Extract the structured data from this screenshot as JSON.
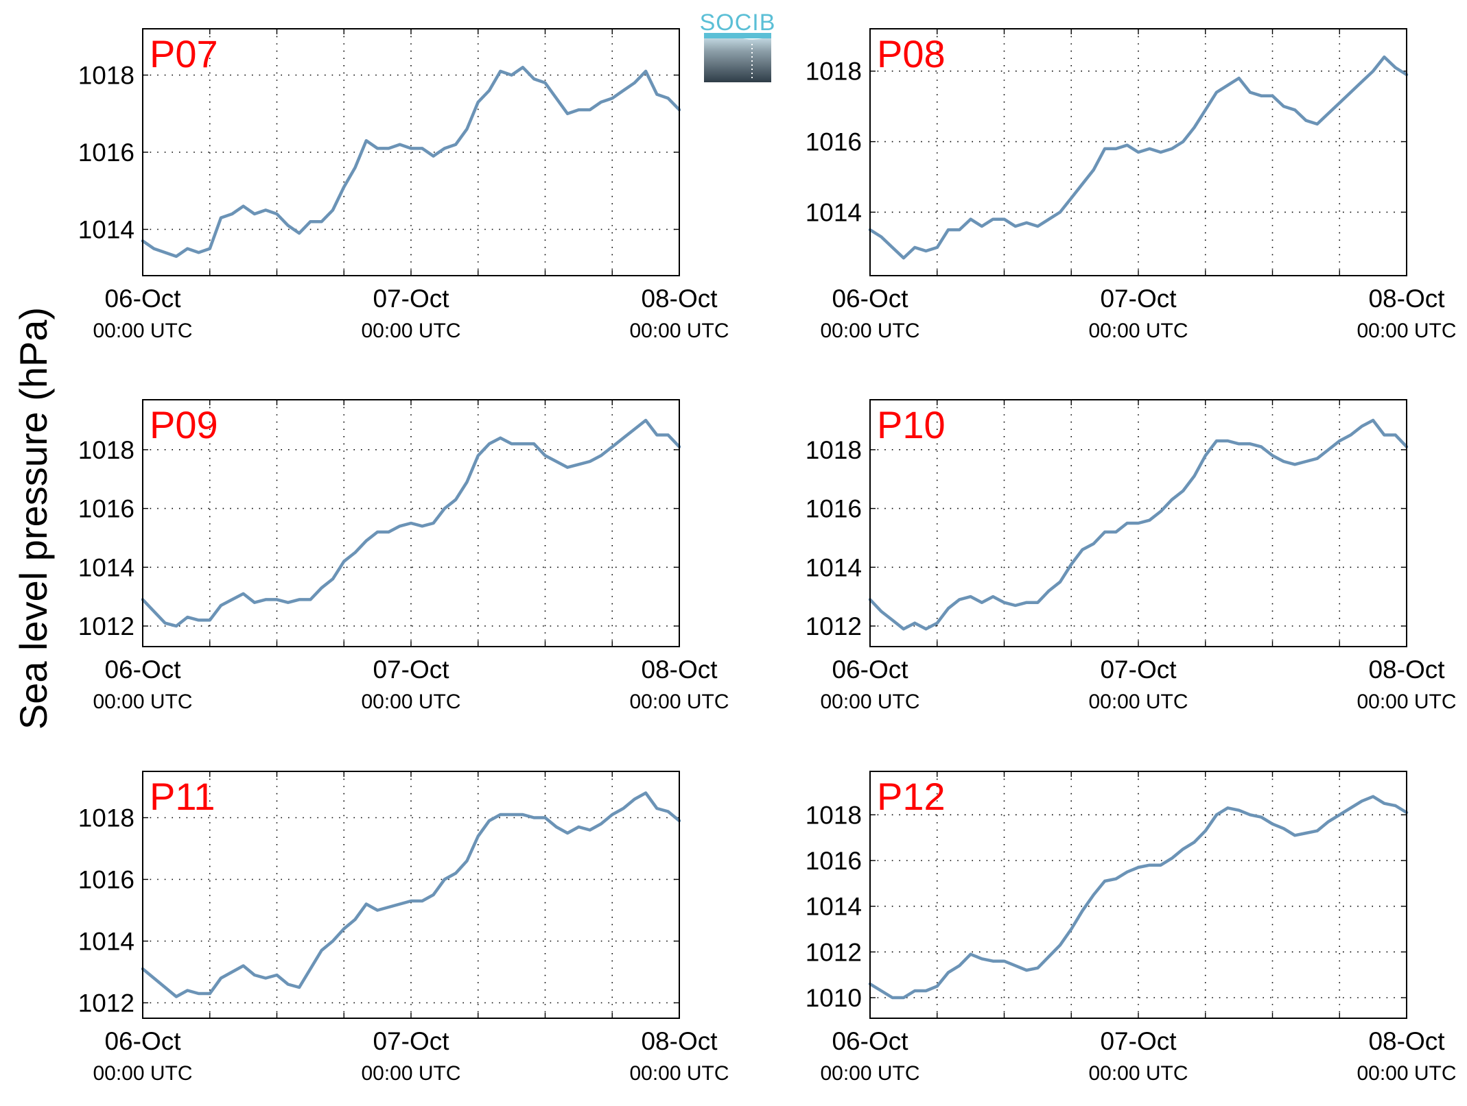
{
  "figure": {
    "ylabel": "Sea level pressure (hPa)",
    "logo_text": "SOCIB",
    "line_color": "#6b93b6",
    "label_color": "#ff0000"
  },
  "chart_data": [
    {
      "type": "line",
      "title": "P07",
      "x_ticks": [
        "06-Oct",
        "07-Oct",
        "08-Oct"
      ],
      "x_tick_sublabels": [
        "00:00 UTC",
        "00:00 UTC",
        "00:00 UTC"
      ],
      "xlim_hours": [
        0,
        48
      ],
      "x_grid_every_hours": 6,
      "ylim": [
        1012.8,
        1019.2
      ],
      "yticks": [
        1014,
        1016,
        1018
      ],
      "grid": true,
      "series": [
        {
          "x_hours": [
            0,
            1,
            2,
            3,
            4,
            5,
            6,
            7,
            8,
            9,
            10,
            11,
            12,
            13,
            14,
            15,
            16,
            17,
            18,
            19,
            20,
            21,
            22,
            23,
            24,
            25,
            26,
            27,
            28,
            29,
            30,
            31,
            32,
            33,
            34,
            35,
            36,
            37,
            38,
            39,
            40,
            41,
            42,
            43,
            44,
            45,
            46,
            47,
            48
          ],
          "values": [
            1013.7,
            1013.5,
            1013.4,
            1013.3,
            1013.5,
            1013.4,
            1013.5,
            1014.3,
            1014.4,
            1014.6,
            1014.4,
            1014.5,
            1014.4,
            1014.1,
            1013.9,
            1014.2,
            1014.2,
            1014.5,
            1015.1,
            1015.6,
            1016.3,
            1016.1,
            1016.1,
            1016.2,
            1016.1,
            1016.1,
            1015.9,
            1016.1,
            1016.2,
            1016.6,
            1017.3,
            1017.6,
            1018.1,
            1018.0,
            1018.2,
            1017.9,
            1017.8,
            1017.4,
            1017.0,
            1017.1,
            1017.1,
            1017.3,
            1017.4,
            1017.6,
            1017.8,
            1018.1,
            1017.5,
            1017.4,
            1017.1
          ]
        }
      ]
    },
    {
      "type": "line",
      "title": "P08",
      "x_ticks": [
        "06-Oct",
        "07-Oct",
        "08-Oct"
      ],
      "x_tick_sublabels": [
        "00:00 UTC",
        "00:00 UTC",
        "00:00 UTC"
      ],
      "xlim_hours": [
        0,
        48
      ],
      "x_grid_every_hours": 6,
      "ylim": [
        1012.2,
        1019.2
      ],
      "yticks": [
        1014,
        1016,
        1018
      ],
      "grid": true,
      "series": [
        {
          "x_hours": [
            0,
            1,
            2,
            3,
            4,
            5,
            6,
            7,
            8,
            9,
            10,
            11,
            12,
            13,
            14,
            15,
            16,
            17,
            18,
            19,
            20,
            21,
            22,
            23,
            24,
            25,
            26,
            27,
            28,
            29,
            30,
            31,
            32,
            33,
            34,
            35,
            36,
            37,
            38,
            39,
            40,
            41,
            42,
            43,
            44,
            45,
            46,
            47,
            48
          ],
          "values": [
            1013.5,
            1013.3,
            1013.0,
            1012.7,
            1013.0,
            1012.9,
            1013.0,
            1013.5,
            1013.5,
            1013.8,
            1013.6,
            1013.8,
            1013.8,
            1013.6,
            1013.7,
            1013.6,
            1013.8,
            1014.0,
            1014.4,
            1014.8,
            1015.2,
            1015.8,
            1015.8,
            1015.9,
            1015.7,
            1015.8,
            1015.7,
            1015.8,
            1016.0,
            1016.4,
            1016.9,
            1017.4,
            1017.6,
            1017.8,
            1017.4,
            1017.3,
            1017.3,
            1017.0,
            1016.9,
            1016.6,
            1016.5,
            1016.8,
            1017.1,
            1017.4,
            1017.7,
            1018.0,
            1018.4,
            1018.1,
            1017.9
          ]
        }
      ]
    },
    {
      "type": "line",
      "title": "P09",
      "x_ticks": [
        "06-Oct",
        "07-Oct",
        "08-Oct"
      ],
      "x_tick_sublabels": [
        "00:00 UTC",
        "00:00 UTC",
        "00:00 UTC"
      ],
      "xlim_hours": [
        0,
        48
      ],
      "x_grid_every_hours": 6,
      "ylim": [
        1011.3,
        1019.7
      ],
      "yticks": [
        1012,
        1014,
        1016,
        1018
      ],
      "grid": true,
      "series": [
        {
          "x_hours": [
            0,
            1,
            2,
            3,
            4,
            5,
            6,
            7,
            8,
            9,
            10,
            11,
            12,
            13,
            14,
            15,
            16,
            17,
            18,
            19,
            20,
            21,
            22,
            23,
            24,
            25,
            26,
            27,
            28,
            29,
            30,
            31,
            32,
            33,
            34,
            35,
            36,
            37,
            38,
            39,
            40,
            41,
            42,
            43,
            44,
            45,
            46,
            47,
            48
          ],
          "values": [
            1012.9,
            1012.5,
            1012.1,
            1012.0,
            1012.3,
            1012.2,
            1012.2,
            1012.7,
            1012.9,
            1013.1,
            1012.8,
            1012.9,
            1012.9,
            1012.8,
            1012.9,
            1012.9,
            1013.3,
            1013.6,
            1014.2,
            1014.5,
            1014.9,
            1015.2,
            1015.2,
            1015.4,
            1015.5,
            1015.4,
            1015.5,
            1016.0,
            1016.3,
            1016.9,
            1017.8,
            1018.2,
            1018.4,
            1018.2,
            1018.2,
            1018.2,
            1017.8,
            1017.6,
            1017.4,
            1017.5,
            1017.6,
            1017.8,
            1018.1,
            1018.4,
            1018.7,
            1019.0,
            1018.5,
            1018.5,
            1018.1
          ]
        }
      ]
    },
    {
      "type": "line",
      "title": "P10",
      "x_ticks": [
        "06-Oct",
        "07-Oct",
        "08-Oct"
      ],
      "x_tick_sublabels": [
        "00:00 UTC",
        "00:00 UTC",
        "00:00 UTC"
      ],
      "xlim_hours": [
        0,
        48
      ],
      "x_grid_every_hours": 6,
      "ylim": [
        1011.3,
        1019.7
      ],
      "yticks": [
        1012,
        1014,
        1016,
        1018
      ],
      "grid": true,
      "series": [
        {
          "x_hours": [
            0,
            1,
            2,
            3,
            4,
            5,
            6,
            7,
            8,
            9,
            10,
            11,
            12,
            13,
            14,
            15,
            16,
            17,
            18,
            19,
            20,
            21,
            22,
            23,
            24,
            25,
            26,
            27,
            28,
            29,
            30,
            31,
            32,
            33,
            34,
            35,
            36,
            37,
            38,
            39,
            40,
            41,
            42,
            43,
            44,
            45,
            46,
            47,
            48
          ],
          "values": [
            1012.9,
            1012.5,
            1012.2,
            1011.9,
            1012.1,
            1011.9,
            1012.1,
            1012.6,
            1012.9,
            1013.0,
            1012.8,
            1013.0,
            1012.8,
            1012.7,
            1012.8,
            1012.8,
            1013.2,
            1013.5,
            1014.1,
            1014.6,
            1014.8,
            1015.2,
            1015.2,
            1015.5,
            1015.5,
            1015.6,
            1015.9,
            1016.3,
            1016.6,
            1017.1,
            1017.8,
            1018.3,
            1018.3,
            1018.2,
            1018.2,
            1018.1,
            1017.8,
            1017.6,
            1017.5,
            1017.6,
            1017.7,
            1018.0,
            1018.3,
            1018.5,
            1018.8,
            1019.0,
            1018.5,
            1018.5,
            1018.1
          ]
        }
      ]
    },
    {
      "type": "line",
      "title": "P11",
      "x_ticks": [
        "06-Oct",
        "07-Oct",
        "08-Oct"
      ],
      "x_tick_sublabels": [
        "00:00 UTC",
        "00:00 UTC",
        "00:00 UTC"
      ],
      "xlim_hours": [
        0,
        48
      ],
      "x_grid_every_hours": 6,
      "ylim": [
        1011.5,
        1019.5
      ],
      "yticks": [
        1012,
        1014,
        1016,
        1018
      ],
      "grid": true,
      "series": [
        {
          "x_hours": [
            0,
            1,
            2,
            3,
            4,
            5,
            6,
            7,
            8,
            9,
            10,
            11,
            12,
            13,
            14,
            15,
            16,
            17,
            18,
            19,
            20,
            21,
            22,
            23,
            24,
            25,
            26,
            27,
            28,
            29,
            30,
            31,
            32,
            33,
            34,
            35,
            36,
            37,
            38,
            39,
            40,
            41,
            42,
            43,
            44,
            45,
            46,
            47,
            48
          ],
          "values": [
            1013.1,
            1012.8,
            1012.5,
            1012.2,
            1012.4,
            1012.3,
            1012.3,
            1012.8,
            1013.0,
            1013.2,
            1012.9,
            1012.8,
            1012.9,
            1012.6,
            1012.5,
            1013.1,
            1013.7,
            1014.0,
            1014.4,
            1014.7,
            1015.2,
            1015.0,
            1015.1,
            1015.2,
            1015.3,
            1015.3,
            1015.5,
            1016.0,
            1016.2,
            1016.6,
            1017.4,
            1017.9,
            1018.1,
            1018.1,
            1018.1,
            1018.0,
            1018.0,
            1017.7,
            1017.5,
            1017.7,
            1017.6,
            1017.8,
            1018.1,
            1018.3,
            1018.6,
            1018.8,
            1018.3,
            1018.2,
            1017.9
          ]
        }
      ]
    },
    {
      "type": "line",
      "title": "P12",
      "x_ticks": [
        "06-Oct",
        "07-Oct",
        "08-Oct"
      ],
      "x_tick_sublabels": [
        "00:00 UTC",
        "00:00 UTC",
        "00:00 UTC"
      ],
      "xlim_hours": [
        0,
        48
      ],
      "x_grid_every_hours": 6,
      "ylim": [
        1009.1,
        1019.9
      ],
      "yticks": [
        1010,
        1012,
        1014,
        1016,
        1018
      ],
      "grid": true,
      "series": [
        {
          "x_hours": [
            0,
            1,
            2,
            3,
            4,
            5,
            6,
            7,
            8,
            9,
            10,
            11,
            12,
            13,
            14,
            15,
            16,
            17,
            18,
            19,
            20,
            21,
            22,
            23,
            24,
            25,
            26,
            27,
            28,
            29,
            30,
            31,
            32,
            33,
            34,
            35,
            36,
            37,
            38,
            39,
            40,
            41,
            42,
            43,
            44,
            45,
            46,
            47,
            48
          ],
          "values": [
            1010.6,
            1010.3,
            1010.0,
            1010.0,
            1010.3,
            1010.3,
            1010.5,
            1011.1,
            1011.4,
            1011.9,
            1011.7,
            1011.6,
            1011.6,
            1011.4,
            1011.2,
            1011.3,
            1011.8,
            1012.3,
            1013.0,
            1013.8,
            1014.5,
            1015.1,
            1015.2,
            1015.5,
            1015.7,
            1015.8,
            1015.8,
            1016.1,
            1016.5,
            1016.8,
            1017.3,
            1018.0,
            1018.3,
            1018.2,
            1018.0,
            1017.9,
            1017.6,
            1017.4,
            1017.1,
            1017.2,
            1017.3,
            1017.7,
            1018.0,
            1018.3,
            1018.6,
            1018.8,
            1018.5,
            1018.4,
            1018.1
          ]
        }
      ]
    }
  ]
}
